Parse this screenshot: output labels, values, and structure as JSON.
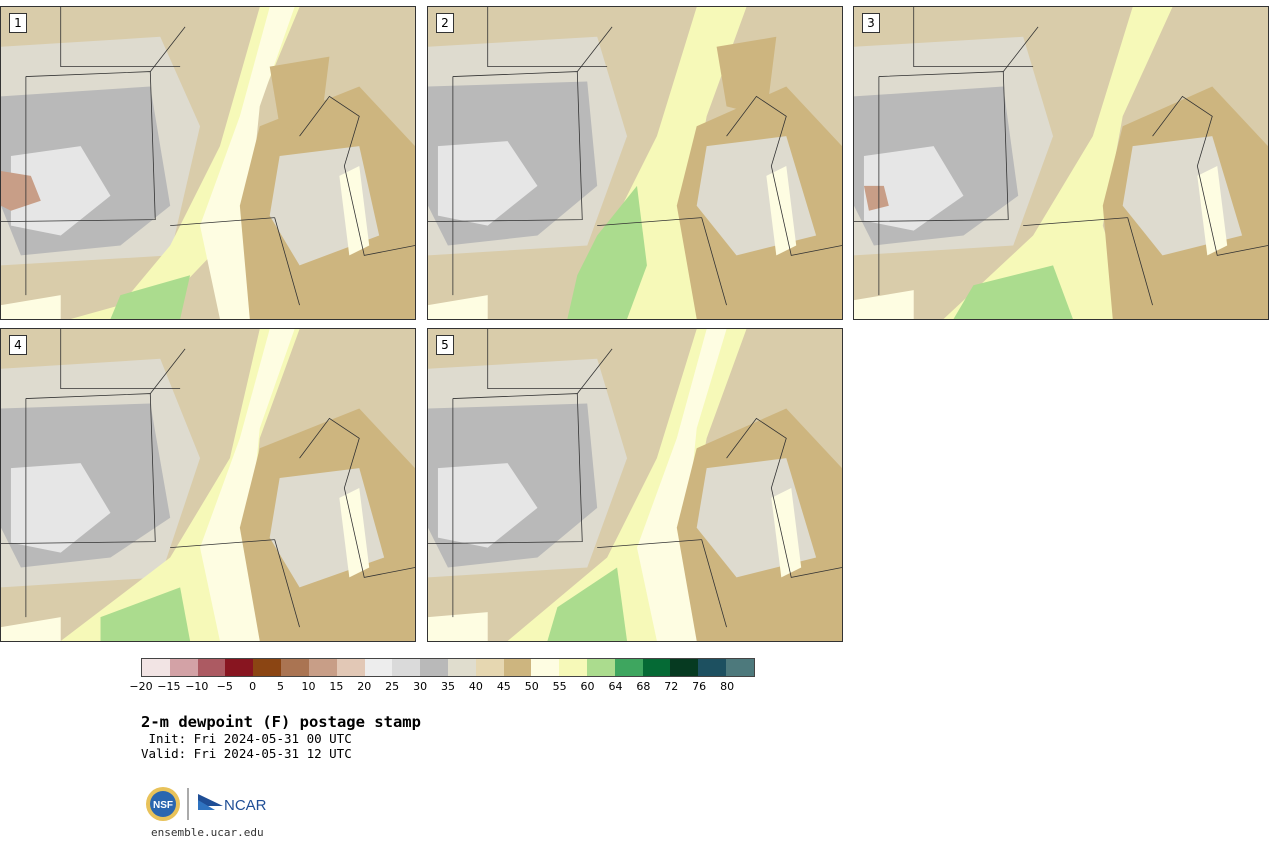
{
  "panels": [
    {
      "label": "1"
    },
    {
      "label": "2"
    },
    {
      "label": "3"
    },
    {
      "label": "4"
    },
    {
      "label": "5"
    }
  ],
  "colorbar": {
    "colors": [
      "#f2e4e4",
      "#d3a2a6",
      "#ac5a62",
      "#881520",
      "#8b4513",
      "#aa7452",
      "#c89e87",
      "#e2c8b6",
      "#ededed",
      "#dadada",
      "#b9b9b9",
      "#e0ddce",
      "#e6d7b1",
      "#cdb57f",
      "#fefde2",
      "#f6f9b8",
      "#abdc8e",
      "#3ea65f",
      "#056a35",
      "#063a21",
      "#1d5060",
      "#4d797c"
    ],
    "tick_labels": [
      "−20",
      "−15",
      "−10",
      "−5",
      "0",
      "5",
      "10",
      "15",
      "20",
      "25",
      "30",
      "35",
      "40",
      "45",
      "50",
      "55",
      "60",
      "64",
      "68",
      "72",
      "76",
      "80"
    ]
  },
  "title": "2-m dewpoint (F) postage stamp",
  "init": " Init: Fri 2024-05-31 00 UTC",
  "valid": "Valid: Fri 2024-05-31 12 UTC",
  "logos": {
    "nsf": "NSF",
    "ncar": "NCAR"
  },
  "footer": "ensemble.ucar.edu"
}
